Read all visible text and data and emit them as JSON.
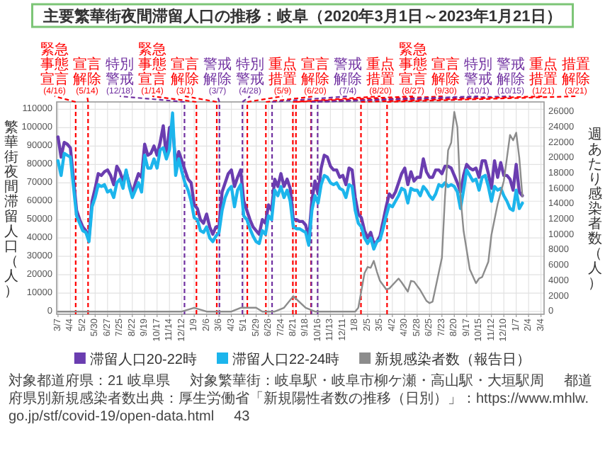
{
  "chart_data": {
    "type": "line",
    "title": "主要繁華街夜間滞留人口の推移：岐阜（2020年3月1日～2023年1月21日）",
    "ylabel": "繁華街夜間滞留人口（人）",
    "y2label": "週あたり感染者数（人）",
    "x": [
      "2020-03-07",
      "2020-03-14",
      "2020-03-21",
      "2020-03-28",
      "2020-04-04",
      "2020-04-11",
      "2020-04-18",
      "2020-04-25",
      "2020-05-02",
      "2020-05-09",
      "2020-05-16",
      "2020-05-23",
      "2020-05-30",
      "2020-06-06",
      "2020-06-13",
      "2020-06-20",
      "2020-06-27",
      "2020-07-04",
      "2020-07-11",
      "2020-07-18",
      "2020-07-25",
      "2020-08-01",
      "2020-08-08",
      "2020-08-15",
      "2020-08-22",
      "2020-08-29",
      "2020-09-05",
      "2020-09-12",
      "2020-09-19",
      "2020-09-26",
      "2020-10-03",
      "2020-10-10",
      "2020-10-17",
      "2020-10-24",
      "2020-10-31",
      "2020-11-07",
      "2020-11-14",
      "2020-11-21",
      "2020-11-28",
      "2020-12-05",
      "2020-12-12",
      "2020-12-19",
      "2020-12-26",
      "2021-01-02",
      "2021-01-09",
      "2021-01-16",
      "2021-01-23",
      "2021-01-30",
      "2021-02-06",
      "2021-02-13",
      "2021-02-20",
      "2021-02-27",
      "2021-03-06",
      "2021-03-13",
      "2021-03-20",
      "2021-03-27",
      "2021-04-03",
      "2021-04-10",
      "2021-04-17",
      "2021-04-24",
      "2021-05-01",
      "2021-05-08",
      "2021-05-15",
      "2021-05-22",
      "2021-05-29",
      "2021-06-05",
      "2021-06-12",
      "2021-06-19",
      "2021-06-26",
      "2021-07-03",
      "2021-07-10",
      "2021-07-17",
      "2021-07-24",
      "2021-07-31",
      "2021-08-07",
      "2021-08-14",
      "2021-08-21",
      "2021-08-28",
      "2021-09-04",
      "2021-09-11",
      "2021-09-18",
      "2021-09-25",
      "2021-10-02",
      "2021-10-09",
      "2021-10-16",
      "2021-10-23",
      "2021-10-30",
      "2021-11-06",
      "2021-11-13",
      "2021-11-20",
      "2021-11-27",
      "2021-12-04",
      "2021-12-11",
      "2021-12-18",
      "2021-12-25",
      "2022-01-01",
      "2022-01-08",
      "2022-01-15",
      "2022-01-22",
      "2022-01-29",
      "2022-02-05",
      "2022-02-12",
      "2022-02-19",
      "2022-02-26",
      "2022-03-05",
      "2022-03-12",
      "2022-03-19",
      "2022-03-26",
      "2022-04-02",
      "2022-04-09",
      "2022-04-16",
      "2022-04-23",
      "2022-04-30",
      "2022-05-07",
      "2022-05-14",
      "2022-05-21",
      "2022-05-28",
      "2022-06-04",
      "2022-06-11",
      "2022-06-18",
      "2022-06-25",
      "2022-07-02",
      "2022-07-09",
      "2022-07-16",
      "2022-07-23",
      "2022-07-30",
      "2022-08-06",
      "2022-08-13",
      "2022-08-20",
      "2022-08-27",
      "2022-09-03",
      "2022-09-10",
      "2022-09-17",
      "2022-09-24",
      "2022-10-01",
      "2022-10-08",
      "2022-10-15",
      "2022-10-22",
      "2022-10-29",
      "2022-11-05",
      "2022-11-12",
      "2022-11-19",
      "2022-11-26",
      "2022-12-03",
      "2022-12-10",
      "2022-12-17",
      "2022-12-24",
      "2022-12-31",
      "2023-01-07",
      "2023-01-14",
      "2023-01-21"
    ],
    "series": [
      {
        "name": "滞留人口20-22時",
        "color": "#6a3db0",
        "values": [
          95000,
          84000,
          92000,
          91000,
          89000,
          72000,
          55000,
          50000,
          46000,
          44000,
          40000,
          60000,
          67000,
          75000,
          74000,
          76000,
          77000,
          74000,
          69000,
          79000,
          76000,
          71000,
          76000,
          70000,
          64000,
          70000,
          75000,
          73000,
          91000,
          85000,
          86000,
          90000,
          85000,
          92000,
          101000,
          84000,
          100000,
          101000,
          80000,
          87000,
          82000,
          77000,
          72000,
          70000,
          58000,
          56000,
          50000,
          48000,
          53000,
          46000,
          42000,
          46000,
          46000,
          65000,
          70000,
          75000,
          77000,
          68000,
          73000,
          77000,
          60000,
          55000,
          50000,
          46000,
          44000,
          42000,
          50000,
          48000,
          58000,
          55000,
          72000,
          68000,
          75000,
          68000,
          72000,
          67000,
          50000,
          50000,
          49000,
          49000,
          47000,
          40000,
          60000,
          71000,
          64000,
          78000,
          85000,
          84000,
          79000,
          77000,
          77000,
          73000,
          74000,
          69000,
          78000,
          77000,
          62000,
          53000,
          51000,
          44000,
          40000,
          43000,
          37000,
          38000,
          41000,
          49000,
          57000,
          64000,
          62000,
          65000,
          70000,
          75000,
          78000,
          69000,
          76000,
          71000,
          73000,
          73000,
          83000,
          76000,
          73000,
          73000,
          77000,
          77000,
          75000,
          79000,
          79000,
          78000,
          74000,
          70000,
          65000,
          74000,
          80000,
          78000,
          77000,
          78000,
          73000,
          82000,
          82000,
          75000,
          67000,
          82000,
          73000,
          81000,
          74000,
          74000,
          72000,
          66000,
          80000,
          65000,
          63000
        ]
      },
      {
        "name": "滞留人口22-24時",
        "color": "#1cb5ec",
        "values": [
          82000,
          74000,
          86000,
          85000,
          84000,
          68000,
          52000,
          48000,
          44000,
          43000,
          38000,
          57000,
          62000,
          69000,
          68000,
          69000,
          65000,
          66000,
          62000,
          70000,
          72000,
          67000,
          77000,
          68000,
          62000,
          66000,
          70000,
          65000,
          85000,
          78000,
          78000,
          83000,
          78000,
          88000,
          89000,
          83000,
          88000,
          108000,
          74000,
          83000,
          76000,
          70000,
          66000,
          60000,
          51000,
          50000,
          44000,
          43000,
          46000,
          40000,
          38000,
          41000,
          43000,
          55000,
          62000,
          66000,
          68000,
          57000,
          66000,
          69000,
          52000,
          50000,
          45000,
          41000,
          38000,
          37000,
          44000,
          42000,
          52000,
          50000,
          66000,
          63000,
          68000,
          62000,
          66000,
          60000,
          46000,
          45000,
          45000,
          44000,
          43000,
          36000,
          55000,
          63000,
          59000,
          69000,
          74000,
          73000,
          70000,
          69000,
          70000,
          67000,
          66000,
          62000,
          69000,
          68000,
          55000,
          48000,
          46000,
          40000,
          37000,
          40000,
          34000,
          38000,
          39000,
          45000,
          52000,
          58000,
          57000,
          60000,
          63000,
          67000,
          66000,
          59000,
          67000,
          66000,
          66000,
          63000,
          68000,
          66000,
          63000,
          61000,
          64000,
          69000,
          68000,
          70000,
          68000,
          69000,
          68000,
          65000,
          56000,
          66000,
          77000,
          74000,
          71000,
          72000,
          66000,
          73000,
          74000,
          68000,
          60000,
          68000,
          66000,
          67000,
          63000,
          60000,
          56000,
          55000,
          66000,
          56000,
          59000
        ]
      },
      {
        "name": "新規感染者数（報告日）",
        "color": "#8c8c8c",
        "axis": "y2",
        "x": [
          "2020-03-07",
          "2020-07-11",
          "2020-07-25",
          "2020-08-08",
          "2020-11-14",
          "2020-12-12",
          "2021-01-09",
          "2021-02-06",
          "2021-03-06",
          "2021-04-03",
          "2021-04-24",
          "2021-05-08",
          "2021-05-29",
          "2021-06-12",
          "2021-07-10",
          "2021-07-31",
          "2021-08-21",
          "2021-09-18",
          "2021-10-09",
          "2021-10-30",
          "2022-01-08",
          "2022-01-15",
          "2022-01-29",
          "2022-02-05",
          "2022-02-12",
          "2022-02-19",
          "2022-02-26",
          "2022-03-05",
          "2022-03-19",
          "2022-03-26",
          "2022-04-16",
          "2022-04-23",
          "2022-05-07",
          "2022-05-14",
          "2022-05-21",
          "2022-06-04",
          "2022-06-18",
          "2022-06-25",
          "2022-07-02",
          "2022-07-09",
          "2022-07-23",
          "2022-07-30",
          "2022-08-06",
          "2022-08-13",
          "2022-08-20",
          "2022-08-27",
          "2022-09-03",
          "2022-09-10",
          "2022-09-24",
          "2022-10-08",
          "2022-10-15",
          "2022-10-22",
          "2022-11-05",
          "2022-11-12",
          "2022-11-26",
          "2022-12-10",
          "2022-12-17",
          "2022-12-24",
          "2022-12-31",
          "2023-01-07",
          "2023-01-14",
          "2023-01-21"
        ],
        "values": [
          0,
          0,
          0,
          0,
          0,
          0,
          500,
          0,
          0,
          0,
          500,
          500,
          500,
          0,
          0,
          500,
          2000,
          500,
          0,
          0,
          0,
          500,
          5000,
          5800,
          5700,
          6600,
          5200,
          4000,
          2900,
          3000,
          4300,
          3800,
          2600,
          4000,
          3900,
          2800,
          1400,
          1100,
          1300,
          3200,
          7000,
          15000,
          21000,
          22000,
          26000,
          24000,
          15000,
          10500,
          5500,
          3700,
          4300,
          4500,
          6500,
          10000,
          14000,
          17000,
          20000,
          23000,
          22300,
          23300,
          20000,
          15000
        ]
      }
    ],
    "xlim": [
      "2020-03-04",
      "2023-03-11"
    ],
    "xticks": [
      {
        "value": "2020-03-07",
        "label": "3/7"
      },
      {
        "value": "2020-04-04",
        "label": "4/4"
      },
      {
        "value": "2020-05-02",
        "label": "5/2"
      },
      {
        "value": "2020-05-30",
        "label": "5/30"
      },
      {
        "value": "2020-06-27",
        "label": "6/27"
      },
      {
        "value": "2020-07-25",
        "label": "7/25"
      },
      {
        "value": "2020-08-22",
        "label": "8/22"
      },
      {
        "value": "2020-09-19",
        "label": "9/19"
      },
      {
        "value": "2020-10-17",
        "label": "10/17"
      },
      {
        "value": "2020-11-14",
        "label": "11/14"
      },
      {
        "value": "2020-12-12",
        "label": "12/12"
      },
      {
        "value": "2021-01-09",
        "label": "1/9"
      },
      {
        "value": "2021-02-06",
        "label": "2/6"
      },
      {
        "value": "2021-03-06",
        "label": "3/6"
      },
      {
        "value": "2021-04-03",
        "label": "4/3"
      },
      {
        "value": "2021-05-01",
        "label": "5/1"
      },
      {
        "value": "2021-05-29",
        "label": "5/29"
      },
      {
        "value": "2021-06-26",
        "label": "6/26"
      },
      {
        "value": "2021-07-24",
        "label": "7/24"
      },
      {
        "value": "2021-08-21",
        "label": "8/21"
      },
      {
        "value": "2021-09-18",
        "label": "9/18"
      },
      {
        "value": "2021-10-16",
        "label": "10/16"
      },
      {
        "value": "2021-11-13",
        "label": "11/13"
      },
      {
        "value": "2021-12-11",
        "label": "12/11"
      },
      {
        "value": "2022-01-08",
        "label": "1/8"
      },
      {
        "value": "2022-02-05",
        "label": "2/5"
      },
      {
        "value": "2022-03-05",
        "label": "3/5"
      },
      {
        "value": "2022-04-02",
        "label": "4/2"
      },
      {
        "value": "2022-04-30",
        "label": "4/30"
      },
      {
        "value": "2022-05-28",
        "label": "5/28"
      },
      {
        "value": "2022-06-25",
        "label": "6/25"
      },
      {
        "value": "2022-07-23",
        "label": "7/23"
      },
      {
        "value": "2022-08-20",
        "label": "8/20"
      },
      {
        "value": "2022-09-17",
        "label": "9/17"
      },
      {
        "value": "2022-10-15",
        "label": "10/15"
      },
      {
        "value": "2022-11-12",
        "label": "11/12"
      },
      {
        "value": "2022-12-10",
        "label": "12/10"
      },
      {
        "value": "2023-01-07",
        "label": "1/7"
      },
      {
        "value": "2023-02-04",
        "label": "2/4"
      },
      {
        "value": "2023-03-04",
        "label": "3/4"
      }
    ],
    "ylim": [
      -1500,
      114000
    ],
    "yticks": [
      0,
      10000,
      20000,
      30000,
      40000,
      50000,
      60000,
      70000,
      80000,
      90000,
      100000,
      110000
    ],
    "y2lim": [
      -350,
      27300
    ],
    "y2ticks": [
      0,
      2000,
      4000,
      6000,
      8000,
      10000,
      12000,
      14000,
      16000,
      18000,
      20000,
      22000,
      24000,
      26000
    ],
    "grid": true,
    "legend": "bottom",
    "ref_lines": [
      {
        "axis": "x",
        "value": "2020-04-16",
        "label": "緊急事態宣言(4/16)",
        "color": "#ff0000",
        "line_style": "dashed"
      },
      {
        "axis": "x",
        "value": "2020-05-14",
        "label": "宣言解除(5/14)",
        "color": "#ff0000",
        "line_style": "dashed"
      },
      {
        "axis": "x",
        "value": "2020-12-18",
        "label": "特別警戒(12/18)",
        "color": "#7030a0",
        "line_style": "dashed"
      },
      {
        "axis": "x",
        "value": "2021-01-14",
        "label": "緊急事態宣言(1/14)",
        "color": "#ff0000",
        "line_style": "dashed"
      },
      {
        "axis": "x",
        "value": "2021-03-01",
        "label": "宣言解除(3/1)",
        "color": "#ff0000",
        "line_style": "dashed"
      },
      {
        "axis": "x",
        "value": "2021-03-07",
        "label": "警戒解除(3/7)",
        "color": "#7030a0",
        "line_style": "dashed"
      },
      {
        "axis": "x",
        "value": "2021-04-28",
        "label": "特別警戒(4/28)",
        "color": "#7030a0",
        "line_style": "dashed"
      },
      {
        "axis": "x",
        "value": "2021-05-09",
        "label": "重点措置(5/9)",
        "color": "#ff0000",
        "line_style": "dashed"
      },
      {
        "axis": "x",
        "value": "2021-06-20",
        "label": "宣言解除(6/20)",
        "color": "#ff0000",
        "line_style": "dashed"
      },
      {
        "axis": "x",
        "value": "2021-07-04",
        "label": "警戒解除(7/4)",
        "color": "#7030a0",
        "line_style": "dashed"
      },
      {
        "axis": "x",
        "value": "2021-08-20",
        "label": "重点措置(8/20)",
        "color": "#ff0000",
        "line_style": "dashed"
      },
      {
        "axis": "x",
        "value": "2021-08-27",
        "label": "緊急事態宣言(8/27)",
        "color": "#ff0000",
        "line_style": "dashed"
      },
      {
        "axis": "x",
        "value": "2021-09-30",
        "label": "宣言解除(9/30)",
        "color": "#ff0000",
        "line_style": "dashed"
      },
      {
        "axis": "x",
        "value": "2021-10-01",
        "label": "特別警戒(10/1)",
        "color": "#7030a0",
        "line_style": "dashed"
      },
      {
        "axis": "x",
        "value": "2021-10-15",
        "label": "警戒解除(10/15)",
        "color": "#7030a0",
        "line_style": "dashed"
      },
      {
        "axis": "x",
        "value": "2022-01-21",
        "label": "重点措置(1/21)",
        "color": "#ff0000",
        "line_style": "dashed"
      },
      {
        "axis": "x",
        "value": "2022-03-21",
        "label": "措置解除(3/21)",
        "color": "#ff0000",
        "line_style": "dashed"
      }
    ],
    "annotations": [
      "対象都道府県：21 岐阜県",
      "対象繁華街：岐阜駅・岐阜市柳ケ瀬・高山駅・大垣駅周",
      "都道府県別新規感染者数出典：厚生労働省「新規陽性者数の推移（日別）」：https://www.mhlw.go.jp/stf/covid-19/open-data.html",
      "43"
    ]
  }
}
